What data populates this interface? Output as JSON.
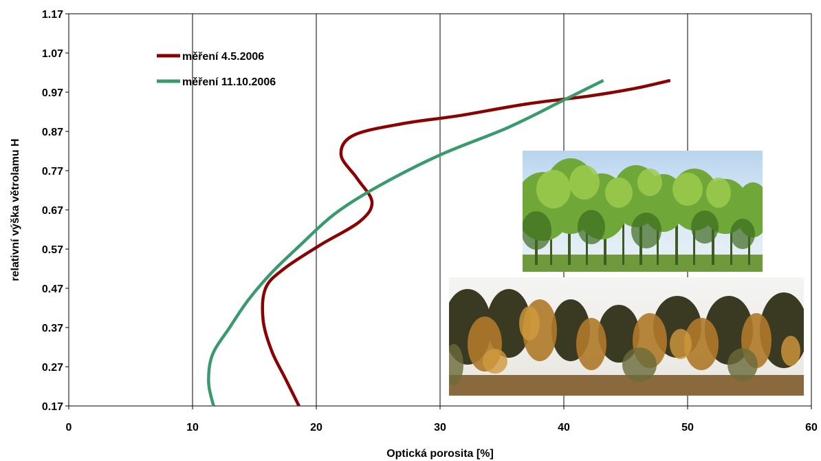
{
  "chart_data": {
    "type": "line",
    "title": "",
    "xlabel": "Optická porosita [%]",
    "ylabel": "relativní výška větrolamu H",
    "xlim": [
      0,
      60
    ],
    "ylim": [
      0.17,
      1.17
    ],
    "xticks": [
      "0",
      "10",
      "20",
      "30",
      "40",
      "50",
      "60"
    ],
    "yticks": [
      "0.17",
      "0.27",
      "0.37",
      "0.47",
      "0.57",
      "0.67",
      "0.77",
      "0.87",
      "0.97",
      "1.07",
      "1.17"
    ],
    "grid": "vertical",
    "legend_position": "top-left",
    "series": [
      {
        "name": "měření 4.5.2006",
        "color": "#8b0000",
        "points": [
          [
            18.6,
            0.17
          ],
          [
            17.5,
            0.24
          ],
          [
            16.4,
            0.31
          ],
          [
            15.7,
            0.39
          ],
          [
            15.9,
            0.47
          ],
          [
            17.4,
            0.52
          ],
          [
            20.3,
            0.58
          ],
          [
            23.5,
            0.64
          ],
          [
            24.5,
            0.69
          ],
          [
            23.3,
            0.75
          ],
          [
            22.0,
            0.81
          ],
          [
            23.0,
            0.86
          ],
          [
            27.0,
            0.89
          ],
          [
            31.5,
            0.91
          ],
          [
            37.0,
            0.94
          ],
          [
            42.0,
            0.96
          ],
          [
            45.8,
            0.98
          ],
          [
            48.6,
            1.0
          ]
        ]
      },
      {
        "name": "měření 11.10.2006",
        "color": "#3a9a6e",
        "points": [
          [
            11.7,
            0.17
          ],
          [
            11.3,
            0.23
          ],
          [
            11.6,
            0.3
          ],
          [
            13.0,
            0.37
          ],
          [
            14.5,
            0.44
          ],
          [
            16.4,
            0.51
          ],
          [
            18.7,
            0.58
          ],
          [
            21.5,
            0.66
          ],
          [
            25.0,
            0.73
          ],
          [
            30.0,
            0.81
          ],
          [
            35.5,
            0.88
          ],
          [
            40.0,
            0.95
          ],
          [
            43.2,
            1.0
          ]
        ]
      }
    ]
  },
  "photos": [
    {
      "name": "spring-windbreak-photo",
      "season": "spring"
    },
    {
      "name": "autumn-windbreak-photo",
      "season": "autumn"
    }
  ]
}
